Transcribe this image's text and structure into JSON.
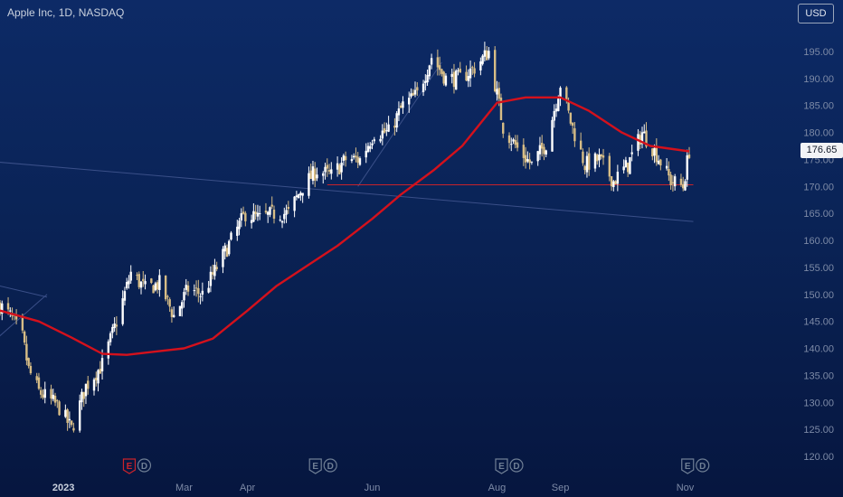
{
  "header": {
    "title": "Apple Inc, 1D, NASDAQ",
    "currency_button": "USD"
  },
  "colors": {
    "background": "#0b2458",
    "candle_up": "#ffffff",
    "candle_down": "#d7bd86",
    "moving_average": "#d4111c",
    "support_line": "#c8232b",
    "trend_line": "#3a4f88",
    "axis_text": "#7d8aa6"
  },
  "chart_data": {
    "type": "candlestick",
    "symbol": "AAPL",
    "exchange": "NASDAQ",
    "interval": "1D",
    "last_price": 176.65,
    "ylim": [
      117,
      198
    ],
    "y_ticks": [
      120,
      125,
      130,
      135,
      140,
      145,
      150,
      155,
      160,
      165,
      170,
      175,
      180,
      185,
      190,
      195
    ],
    "y_tick_labels": [
      "120.00",
      "125.00",
      "130.00",
      "135.00",
      "140.00",
      "145.00",
      "150.00",
      "155.00",
      "160.00",
      "165.00",
      "170.00",
      "175.00",
      "180.00",
      "185.00",
      "190.00",
      "195.00"
    ],
    "x_range": [
      "2022-12-01",
      "2023-11-03"
    ],
    "x_ticks": [
      {
        "label": "2023",
        "date": "2023-01-01",
        "bold": true
      },
      {
        "label": "Mar",
        "date": "2023-03-01"
      },
      {
        "label": "Apr",
        "date": "2023-04-01"
      },
      {
        "label": "Jun",
        "date": "2023-06-01"
      },
      {
        "label": "Aug",
        "date": "2023-08-01"
      },
      {
        "label": "Sep",
        "date": "2023-09-01"
      },
      {
        "label": "Nov",
        "date": "2023-11-01"
      }
    ],
    "close_path": [
      [
        "2022-12-01",
        148
      ],
      [
        "2022-12-06",
        146
      ],
      [
        "2022-12-12",
        142
      ],
      [
        "2022-12-15",
        136
      ],
      [
        "2022-12-20",
        132
      ],
      [
        "2022-12-27",
        130
      ],
      [
        "2022-12-30",
        129
      ],
      [
        "2023-01-05",
        125
      ],
      [
        "2023-01-12",
        133
      ],
      [
        "2023-01-20",
        137
      ],
      [
        "2023-01-27",
        145
      ],
      [
        "2023-02-03",
        154
      ],
      [
        "2023-02-10",
        151
      ],
      [
        "2023-02-17",
        152
      ],
      [
        "2023-02-24",
        146
      ],
      [
        "2023-03-03",
        151
      ],
      [
        "2023-03-10",
        150
      ],
      [
        "2023-03-17",
        155
      ],
      [
        "2023-03-24",
        160
      ],
      [
        "2023-03-31",
        165
      ],
      [
        "2023-04-07",
        164
      ],
      [
        "2023-04-14",
        165
      ],
      [
        "2023-04-21",
        165
      ],
      [
        "2023-04-28",
        170
      ],
      [
        "2023-05-05",
        173
      ],
      [
        "2023-05-12",
        172
      ],
      [
        "2023-05-19",
        175
      ],
      [
        "2023-05-26",
        175
      ],
      [
        "2023-06-02",
        180
      ],
      [
        "2023-06-09",
        180
      ],
      [
        "2023-06-16",
        185
      ],
      [
        "2023-06-23",
        187
      ],
      [
        "2023-06-30",
        194
      ],
      [
        "2023-07-07",
        190
      ],
      [
        "2023-07-14",
        190
      ],
      [
        "2023-07-21",
        192
      ],
      [
        "2023-07-28",
        195
      ],
      [
        "2023-08-04",
        181
      ],
      [
        "2023-08-11",
        177
      ],
      [
        "2023-08-18",
        174
      ],
      [
        "2023-08-25",
        178
      ],
      [
        "2023-09-01",
        189
      ],
      [
        "2023-09-06",
        182
      ],
      [
        "2023-09-13",
        174
      ],
      [
        "2023-09-20",
        175
      ],
      [
        "2023-09-27",
        171
      ],
      [
        "2023-10-04",
        174
      ],
      [
        "2023-10-11",
        180
      ],
      [
        "2023-10-18",
        176
      ],
      [
        "2023-10-25",
        171
      ],
      [
        "2023-10-31",
        170
      ],
      [
        "2023-11-03",
        176.65
      ]
    ],
    "moving_average": [
      [
        "2022-12-01",
        147
      ],
      [
        "2022-12-20",
        145
      ],
      [
        "2023-01-05",
        142
      ],
      [
        "2023-01-20",
        139
      ],
      [
        "2023-02-01",
        138.8
      ],
      [
        "2023-02-15",
        139.4
      ],
      [
        "2023-03-01",
        140
      ],
      [
        "2023-03-15",
        141.8
      ],
      [
        "2023-04-01",
        147
      ],
      [
        "2023-04-15",
        151.5
      ],
      [
        "2023-05-01",
        155.5
      ],
      [
        "2023-05-15",
        159
      ],
      [
        "2023-06-01",
        164
      ],
      [
        "2023-06-15",
        168.5
      ],
      [
        "2023-07-01",
        173
      ],
      [
        "2023-07-15",
        177.5
      ],
      [
        "2023-08-01",
        185.5
      ],
      [
        "2023-08-15",
        186.5
      ],
      [
        "2023-09-01",
        186.5
      ],
      [
        "2023-09-15",
        184
      ],
      [
        "2023-10-01",
        180
      ],
      [
        "2023-10-15",
        177.5
      ],
      [
        "2023-11-03",
        176.5
      ]
    ],
    "support_line": {
      "value": 170.3,
      "from": "2023-05-10",
      "to": "2023-11-05"
    },
    "trend_lines": [
      {
        "from": [
          "2022-11-15",
          175
        ],
        "to": [
          "2023-11-05",
          163.5
        ]
      },
      {
        "from": [
          "2023-05-25",
          170
        ],
        "to": [
          "2023-07-05",
          193
        ]
      },
      {
        "from": [
          "2022-11-15",
          137
        ],
        "to": [
          "2022-12-24",
          150
        ]
      },
      {
        "from": [
          "2022-11-15",
          153
        ],
        "to": [
          "2022-12-24",
          149.5
        ]
      }
    ],
    "events": [
      {
        "date": "2023-02-02",
        "markers": [
          "E",
          "D"
        ],
        "earnings_color": "#c8232b"
      },
      {
        "date": "2023-05-04",
        "markers": [
          "E",
          "D"
        ],
        "earnings_color": "#6f7f95"
      },
      {
        "date": "2023-08-03",
        "markers": [
          "E",
          "D"
        ],
        "earnings_color": "#6f7f95"
      },
      {
        "date": "2023-11-02",
        "markers": [
          "E",
          "D"
        ],
        "earnings_color": "#6f7f95"
      }
    ]
  }
}
